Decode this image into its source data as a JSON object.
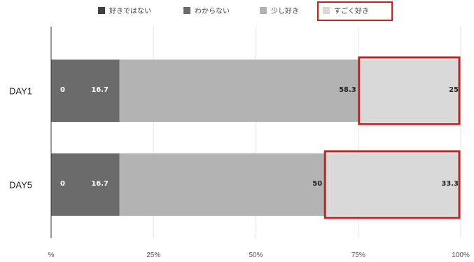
{
  "chart_data": {
    "type": "bar",
    "orientation": "horizontal",
    "stacked": "percent",
    "categories": [
      "DAY1",
      "DAY5"
    ],
    "series": [
      {
        "name": "好きではない",
        "values": [
          0,
          0
        ],
        "labels": [
          "0",
          "0"
        ],
        "color": "#404040",
        "label_color": "#ffffff"
      },
      {
        "name": "わからない",
        "values": [
          16.7,
          16.7
        ],
        "labels": [
          "16.7",
          "16.7"
        ],
        "color": "#6b6b6b",
        "label_color": "#ffffff"
      },
      {
        "name": "少し好き",
        "values": [
          58.3,
          50
        ],
        "labels": [
          "58.3",
          "50"
        ],
        "color": "#b3b3b3",
        "label_color": "#222222"
      },
      {
        "name": "すごく好き",
        "values": [
          25,
          33.3
        ],
        "labels": [
          "25",
          "33.3"
        ],
        "color": "#d9d9d9",
        "label_color": "#222222"
      }
    ],
    "x_ticks": [
      "%",
      "25%",
      "50%",
      "75%",
      "100%"
    ],
    "x_tick_values": [
      0,
      25,
      50,
      75,
      100
    ],
    "xlim": [
      0,
      100
    ],
    "grid": true,
    "legend_position": "top",
    "highlight_color": "#cc1f1f",
    "highlighted_series": "すごく好き"
  }
}
